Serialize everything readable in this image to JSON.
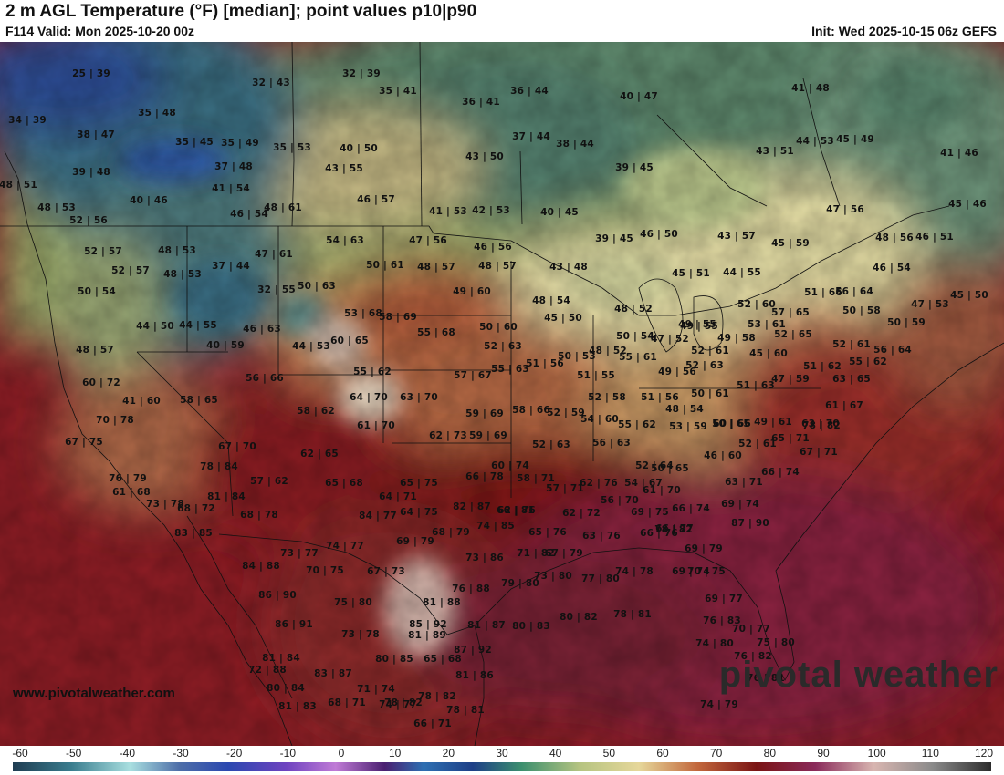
{
  "header": {
    "title": "2 m AGL Temperature (°F) [median]; point values p10|p90",
    "valid": "F114 Valid: Mon 2025-10-20 00z",
    "init": "Init: Wed 2025-10-15 06z GEFS"
  },
  "footer": {
    "site_url": "www.pivotalweather.com",
    "watermark": "pivotal weather"
  },
  "colorbar": {
    "ticks": [
      "-60",
      "-50",
      "-40",
      "-30",
      "-20",
      "-10",
      "0",
      "10",
      "20",
      "30",
      "40",
      "50",
      "60",
      "70",
      "80",
      "90",
      "100",
      "110",
      "120"
    ]
  },
  "point_values": [
    "25|39",
    "32|43",
    "32|39",
    "35|41",
    "36|41",
    "36|44",
    "40|47",
    "39|45",
    "41|48",
    "34|39",
    "35|48",
    "38|47",
    "35|45",
    "35|49",
    "35|53",
    "40|50",
    "37|44",
    "38|44",
    "44|53",
    "45|49",
    "39|48",
    "37|48",
    "43|55",
    "43|50",
    "41|46",
    "48|51",
    "40|46",
    "41|54",
    "46|54",
    "48|61",
    "46|57",
    "41|53",
    "42|53",
    "40|45",
    "43|51",
    "47|56",
    "45|46",
    "48|53",
    "52|56",
    "47|56",
    "46|56",
    "39|45",
    "46|50",
    "43|57",
    "45|59",
    "48|56",
    "46|51",
    "52|57",
    "48|53",
    "37|44",
    "47|61",
    "54|63",
    "50|61",
    "48|57",
    "48|57",
    "48|53",
    "43|48",
    "44|55",
    "46|54",
    "52|57",
    "50|54",
    "32|55",
    "50|63",
    "49|60",
    "48|54",
    "45|51",
    "51|66",
    "56|64",
    "47|53",
    "45|50",
    "49|55",
    "53|68",
    "58|69",
    "48|52",
    "52|60",
    "44|50",
    "44|55",
    "46|63",
    "60|65",
    "50|60",
    "45|50",
    "49|55",
    "53|61",
    "57|65",
    "50|58",
    "50|59",
    "48|57",
    "40|59",
    "44|53",
    "55|68",
    "52|63",
    "50|53",
    "48|52",
    "50|54",
    "47|52",
    "52|61",
    "49|58",
    "52|65",
    "52|61",
    "56|64",
    "60|72",
    "56|66",
    "55|62",
    "57|67",
    "55|63",
    "51|56",
    "55|61",
    "52|63",
    "45|60",
    "55|62",
    "41|60",
    "58|65",
    "64|70",
    "63|70",
    "51|55",
    "49|56",
    "51|63",
    "47|59",
    "51|62",
    "63|65",
    "70|78",
    "58|62",
    "59|69",
    "58|66",
    "52|59",
    "52|58",
    "51|56",
    "50|61",
    "60|66",
    "61|67",
    "67|75",
    "61|70",
    "62|73",
    "59|69",
    "54|60",
    "48|54",
    "53|59",
    "50|65",
    "49|61",
    "63|70",
    "78|82",
    "67|70",
    "62|65",
    "60|74",
    "56|63",
    "52|63",
    "55|62",
    "52|61",
    "65|71",
    "67|71",
    "78|84",
    "76|79",
    "57|62",
    "65|68",
    "65|75",
    "66|78",
    "58|71",
    "62|76",
    "52|64",
    "50|65",
    "46|60",
    "66|74",
    "61|68",
    "73|78",
    "81|84",
    "64|71",
    "57|71",
    "54|67",
    "63|71",
    "68|72",
    "82|87",
    "66|81",
    "64|75",
    "56|70",
    "61|70",
    "66|74",
    "69|74",
    "87|90",
    "83|85",
    "68|78",
    "84|77",
    "62|76",
    "62|72",
    "69|75",
    "78|82",
    "69|79",
    "68|79",
    "74|85",
    "65|76",
    "63|76",
    "66|76",
    "66|77",
    "69|79",
    "73|77",
    "74|77",
    "71|82",
    "67|79",
    "84|88",
    "70|75",
    "67|73",
    "73|86",
    "73|80",
    "77|80",
    "74|78",
    "69|74",
    "70|75",
    "86|90",
    "75|80",
    "79|80",
    "76|88",
    "81|88",
    "69|77",
    "86|91",
    "73|78",
    "81|87",
    "85|92",
    "80|83",
    "80|82",
    "78|81",
    "76|83",
    "70|77",
    "81|84",
    "81|89",
    "87|92",
    "74|80",
    "75|80",
    "76|82",
    "72|88",
    "83|87",
    "80|85",
    "65|68",
    "81|86",
    "80|84",
    "71|74",
    "74|77",
    "78|82",
    "78|81",
    "81|83",
    "68|71",
    "78|82",
    "66|71",
    "76|81",
    "74|79"
  ]
}
